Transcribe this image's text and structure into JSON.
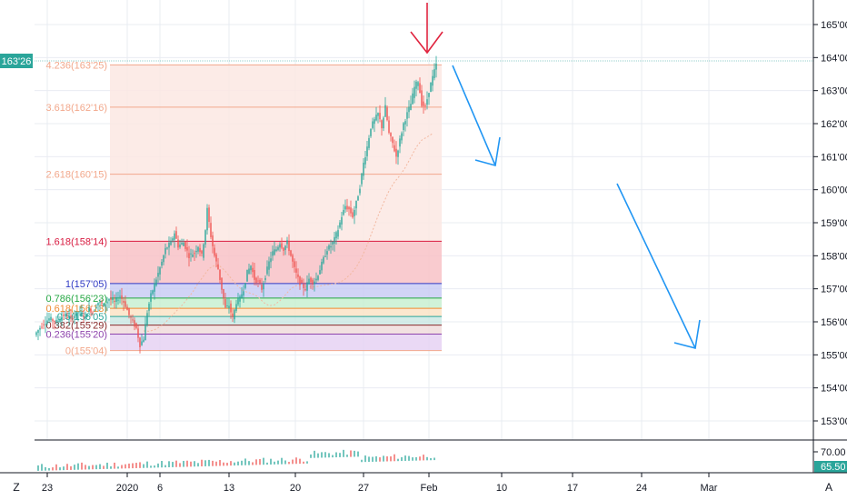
{
  "chart_data": {
    "type": "candlestick",
    "price_axis": {
      "ticks": [
        "165'00",
        "164'00",
        "163'00",
        "162'00",
        "161'00",
        "160'00",
        "159'00",
        "158'00",
        "157'00",
        "156'00",
        "155'00",
        "154'00",
        "153'00"
      ],
      "last_price_label": "163'26",
      "range": [
        152.4,
        165.6
      ]
    },
    "time_axis": {
      "ticks": [
        "23",
        "2020",
        "6",
        "13",
        "20",
        "27",
        "Feb",
        "10",
        "17",
        "24",
        "Mar"
      ]
    },
    "fibonacci_levels": [
      {
        "label": "4.236(163'25)",
        "value": 163.78,
        "color": "#f2a88c"
      },
      {
        "label": "3.618(162'16)",
        "value": 162.5,
        "color": "#f2a88c"
      },
      {
        "label": "2.618(160'15)",
        "value": 160.47,
        "color": "#f2a88c"
      },
      {
        "label": "1.618(158'14)",
        "value": 158.44,
        "color": "#d81b40"
      },
      {
        "label": "1(157'05)",
        "value": 157.16,
        "color": "#2f3ac4"
      },
      {
        "label": "0.786(156'23)",
        "value": 156.72,
        "color": "#27a844"
      },
      {
        "label": "0.618(156'13)",
        "value": 156.41,
        "color": "#ef8c34"
      },
      {
        "label": "0.5(156'05)",
        "value": 156.16,
        "color": "#2aa59a"
      },
      {
        "label": "0.382(155'29)",
        "value": 155.9,
        "color": "#8a2a2a"
      },
      {
        "label": "0.236(155'20)",
        "value": 155.63,
        "color": "#8e44ad"
      },
      {
        "label": "0(155'04)",
        "value": 155.13,
        "color": "#f2a88c"
      }
    ],
    "price_path": [
      [
        0,
        155.6
      ],
      [
        4,
        155.9
      ],
      [
        8,
        156.1
      ],
      [
        12,
        156.0
      ],
      [
        16,
        156.2
      ],
      [
        20,
        156.1
      ],
      [
        24,
        156.3
      ],
      [
        28,
        156.2
      ],
      [
        30,
        156.4
      ],
      [
        32,
        156.3
      ],
      [
        35,
        156.6
      ],
      [
        38,
        156.5
      ],
      [
        41,
        156.7
      ],
      [
        44,
        156.6
      ],
      [
        47,
        156.8
      ],
      [
        50,
        156.5
      ],
      [
        52,
        156.2
      ],
      [
        54,
        156.0
      ],
      [
        56,
        155.8
      ],
      [
        58,
        155.3
      ],
      [
        60,
        155.5
      ],
      [
        62,
        156.3
      ],
      [
        64,
        156.8
      ],
      [
        67,
        157.3
      ],
      [
        70,
        157.8
      ],
      [
        72,
        158.2
      ],
      [
        75,
        158.4
      ],
      [
        77,
        158.7
      ],
      [
        79,
        158.3
      ],
      [
        82,
        158.4
      ],
      [
        85,
        158.0
      ],
      [
        88,
        158.1
      ],
      [
        90,
        158.3
      ],
      [
        92,
        158.0
      ],
      [
        94,
        158.8
      ],
      [
        95,
        159.4
      ],
      [
        97,
        158.6
      ],
      [
        99,
        158.0
      ],
      [
        101,
        157.6
      ],
      [
        103,
        157.0
      ],
      [
        105,
        156.4
      ],
      [
        107,
        156.5
      ],
      [
        109,
        156.1
      ],
      [
        111,
        156.6
      ],
      [
        113,
        156.7
      ],
      [
        115,
        157.0
      ],
      [
        117,
        157.5
      ],
      [
        119,
        157.7
      ],
      [
        121,
        157.3
      ],
      [
        123,
        157.2
      ],
      [
        125,
        157.0
      ],
      [
        127,
        157.4
      ],
      [
        129,
        157.8
      ],
      [
        131,
        158.1
      ],
      [
        133,
        158.2
      ],
      [
        135,
        158.4
      ],
      [
        137,
        158.2
      ],
      [
        139,
        158.4
      ],
      [
        141,
        158.0
      ],
      [
        143,
        157.6
      ],
      [
        145,
        157.3
      ],
      [
        147,
        157.1
      ],
      [
        149,
        157.0
      ],
      [
        151,
        157.3
      ],
      [
        153,
        157.2
      ],
      [
        155,
        157.3
      ],
      [
        157,
        157.6
      ],
      [
        159,
        157.9
      ],
      [
        161,
        158.2
      ],
      [
        163,
        158.3
      ],
      [
        165,
        158.5
      ],
      [
        167,
        158.8
      ],
      [
        169,
        159.2
      ],
      [
        171,
        159.5
      ],
      [
        173,
        159.4
      ],
      [
        175,
        159.2
      ],
      [
        177,
        159.6
      ],
      [
        179,
        160.1
      ],
      [
        181,
        160.8
      ],
      [
        183,
        161.3
      ],
      [
        185,
        161.9
      ],
      [
        187,
        162.1
      ],
      [
        189,
        162.3
      ],
      [
        191,
        161.9
      ],
      [
        193,
        162.5
      ],
      [
        195,
        161.7
      ],
      [
        197,
        161.4
      ],
      [
        199,
        161.0
      ],
      [
        201,
        161.5
      ],
      [
        203,
        162.0
      ],
      [
        205,
        162.3
      ],
      [
        207,
        162.6
      ],
      [
        209,
        163.1
      ],
      [
        211,
        163.3
      ],
      [
        213,
        162.6
      ],
      [
        215,
        162.5
      ],
      [
        217,
        163.0
      ],
      [
        219,
        163.4
      ],
      [
        221,
        163.78
      ]
    ],
    "volume_axis": {
      "ticks": [
        "70.00"
      ],
      "last_label": "65.50"
    },
    "annotations": [
      {
        "kind": "arrow",
        "color": "#e0243f",
        "direction": "down"
      },
      {
        "kind": "arrow",
        "color": "#2196f3",
        "direction": "down"
      },
      {
        "kind": "arrow",
        "color": "#2196f3",
        "direction": "down"
      }
    ]
  },
  "colors": {
    "up": "#26a69a",
    "down": "#ef5350",
    "grid": "#e9ecf2",
    "axis_text": "#131722",
    "last_price_bg": "#2aa59a"
  },
  "footer": {
    "zoom_button": "Z",
    "auto_button": "A"
  }
}
